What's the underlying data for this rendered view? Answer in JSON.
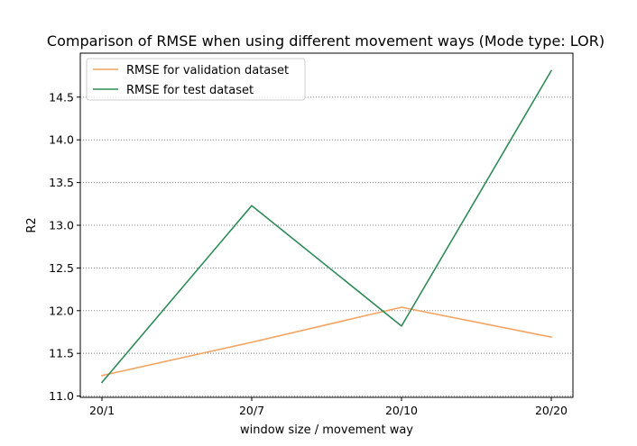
{
  "chart_data": {
    "type": "line",
    "title": "Comparison of RMSE when using different movement ways (Mode type: LOR)",
    "xlabel": "window size / movement way",
    "ylabel": "R2",
    "categories": [
      "20/1",
      "20/7",
      "20/10",
      "20/20"
    ],
    "y_ticks": [
      "11.0",
      "11.5",
      "12.0",
      "12.5",
      "13.0",
      "13.5",
      "14.0",
      "14.5"
    ],
    "ylim": [
      10.985,
      15.015
    ],
    "grid": "horizontal-dotted",
    "legend_position": "upper left",
    "series": [
      {
        "name": "RMSE for validation dataset",
        "color": "#f4a460",
        "values": [
          11.24,
          11.63,
          12.04,
          11.69
        ]
      },
      {
        "name": "RMSE for test dataset",
        "color": "#2e8b57",
        "values": [
          11.16,
          13.23,
          11.82,
          14.81
        ]
      }
    ]
  }
}
